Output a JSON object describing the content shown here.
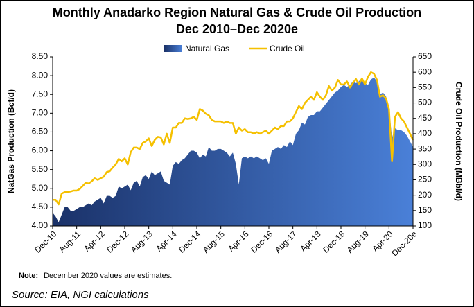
{
  "chart_data": {
    "type": "area-line",
    "title": "Monthly Anadarko Region Natural Gas & Crude Oil Production",
    "subtitle": "Dec 2010–Dec 2020e",
    "y_label": "NatGas Production (Bcf/d)",
    "y2_label": "Crude Oil Production (MBbl/d)",
    "note_label": "Note:",
    "note": "December 2020 values are estimates.",
    "source": "Source: EIA, NGI calculations",
    "categories": [
      "Dec-10",
      null,
      null,
      null,
      null,
      null,
      null,
      null,
      "Aug-11",
      null,
      null,
      null,
      null,
      null,
      null,
      null,
      "Apr-12",
      null,
      null,
      null,
      null,
      null,
      null,
      null,
      "Dec-12",
      null,
      null,
      null,
      null,
      null,
      null,
      null,
      "Aug-13",
      null,
      null,
      null,
      null,
      null,
      null,
      null,
      "Apr-14",
      null,
      null,
      null,
      null,
      null,
      null,
      null,
      "Dec-14",
      null,
      null,
      null,
      null,
      null,
      null,
      null,
      "Aug-15",
      null,
      null,
      null,
      null,
      null,
      null,
      null,
      "Apr-16",
      null,
      null,
      null,
      null,
      null,
      null,
      null,
      "Dec-16",
      null,
      null,
      null,
      null,
      null,
      null,
      null,
      "Aug-17",
      null,
      null,
      null,
      null,
      null,
      null,
      null,
      "Apr-18",
      null,
      null,
      null,
      null,
      null,
      null,
      null,
      "Dec-18",
      null,
      null,
      null,
      null,
      null,
      null,
      null,
      "Aug-19",
      null,
      null,
      null,
      null,
      null,
      null,
      null,
      "Apr-20",
      null,
      null,
      null,
      null,
      null,
      null,
      null,
      "Dec-20e"
    ],
    "series": [
      {
        "name": "Natural Gas",
        "type": "area",
        "color": "#3566c0",
        "values": [
          4.35,
          4.25,
          4.1,
          4.3,
          4.5,
          4.5,
          4.4,
          4.4,
          4.45,
          4.5,
          4.5,
          4.55,
          4.6,
          4.55,
          4.65,
          4.7,
          4.75,
          4.6,
          4.8,
          4.8,
          4.75,
          4.8,
          5.05,
          5.0,
          5.05,
          5.1,
          4.95,
          5.15,
          5.2,
          5.05,
          5.3,
          5.35,
          5.25,
          5.45,
          5.35,
          5.4,
          5.45,
          5.2,
          5.15,
          5.1,
          5.6,
          5.7,
          5.65,
          5.75,
          5.8,
          5.9,
          6.0,
          6.0,
          5.95,
          5.8,
          5.9,
          5.85,
          6.1,
          6.0,
          6.0,
          6.05,
          6.05,
          6.0,
          5.95,
          5.85,
          5.95,
          5.65,
          5.1,
          5.8,
          5.85,
          5.8,
          5.85,
          5.8,
          5.85,
          5.8,
          5.75,
          5.8,
          5.65,
          6.0,
          6.05,
          6.1,
          6.05,
          6.15,
          6.1,
          6.25,
          6.15,
          6.45,
          6.55,
          6.75,
          6.7,
          6.9,
          6.95,
          6.95,
          7.05,
          7.05,
          7.15,
          7.25,
          7.35,
          7.45,
          7.55,
          7.6,
          7.7,
          7.75,
          7.7,
          7.75,
          7.85,
          7.8,
          7.85,
          7.95,
          7.8,
          7.75,
          7.9,
          7.95,
          7.85,
          7.5,
          7.55,
          7.45,
          7.15,
          6.35,
          6.6,
          6.55,
          6.55,
          6.5,
          6.4,
          6.25,
          6.1
        ]
      },
      {
        "name": "Crude Oil",
        "type": "line",
        "axis": "y2",
        "color": "#f5c000",
        "values": [
          185,
          185,
          170,
          205,
          210,
          210,
          212,
          215,
          215,
          220,
          230,
          240,
          238,
          245,
          255,
          250,
          255,
          260,
          275,
          278,
          290,
          300,
          318,
          310,
          320,
          300,
          340,
          355,
          355,
          350,
          370,
          375,
          385,
          360,
          380,
          390,
          388,
          365,
          400,
          370,
          420,
          420,
          435,
          435,
          450,
          448,
          450,
          455,
          445,
          480,
          475,
          465,
          460,
          445,
          440,
          440,
          440,
          435,
          440,
          435,
          435,
          400,
          420,
          410,
          415,
          405,
          405,
          400,
          405,
          400,
          405,
          410,
          400,
          410,
          420,
          415,
          425,
          425,
          440,
          440,
          450,
          470,
          490,
          480,
          500,
          510,
          520,
          510,
          535,
          520,
          510,
          525,
          555,
          540,
          550,
          575,
          560,
          560,
          570,
          550,
          565,
          578,
          560,
          580,
          560,
          585,
          600,
          595,
          575,
          520,
          525,
          515,
          480,
          310,
          455,
          470,
          450,
          440,
          420,
          400,
          380
        ]
      }
    ],
    "ylim": [
      4,
      8.5
    ],
    "yticks": [
      {
        "value": 4,
        "label": "4.00"
      },
      {
        "value": 4.5,
        "label": "4.50"
      },
      {
        "value": 5,
        "label": "5.00"
      },
      {
        "value": 5.5,
        "label": "5.50"
      },
      {
        "value": 6,
        "label": "6.00"
      },
      {
        "value": 6.5,
        "label": "6.50"
      },
      {
        "value": 7,
        "label": "7.00"
      },
      {
        "value": 7.5,
        "label": "7.50"
      },
      {
        "value": 8,
        "label": "8.00"
      },
      {
        "value": 8.5,
        "label": "8.50"
      }
    ],
    "y2lim": [
      100,
      650
    ],
    "y2ticks": [
      100,
      150,
      200,
      250,
      300,
      350,
      400,
      450,
      500,
      550,
      600,
      650
    ]
  }
}
